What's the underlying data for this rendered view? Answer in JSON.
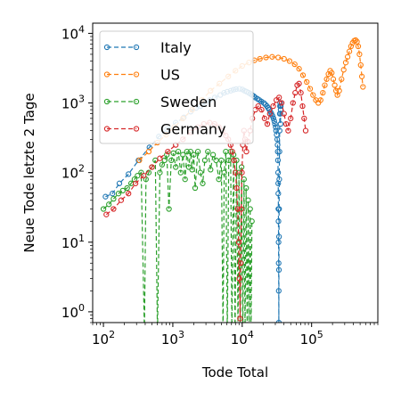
{
  "chart_data": {
    "type": "line",
    "xlabel": "Tode Total",
    "ylabel": "Neue Tode letzte 2 Tage",
    "x_scale": "log",
    "y_scale": "log",
    "xlim": [
      70,
      900000
    ],
    "ylim": [
      0.7,
      14000
    ],
    "x_ticks": [
      {
        "value": 100,
        "base": "10",
        "exp": "2"
      },
      {
        "value": 1000,
        "base": "10",
        "exp": "3"
      },
      {
        "value": 10000,
        "base": "10",
        "exp": "4"
      },
      {
        "value": 100000,
        "base": "10",
        "exp": "5"
      }
    ],
    "y_ticks": [
      {
        "value": 1,
        "base": "10",
        "exp": "0"
      },
      {
        "value": 10,
        "base": "10",
        "exp": "1"
      },
      {
        "value": 100,
        "base": "10",
        "exp": "2"
      },
      {
        "value": 1000,
        "base": "10",
        "exp": "3"
      },
      {
        "value": 10000,
        "base": "10",
        "exp": "4"
      }
    ],
    "legend_position": "top-left",
    "marker": "open-circle",
    "linestyle": "dashed",
    "series": [
      {
        "name": "Italy",
        "color": "#1f77b4",
        "points": [
          [
            107,
            45
          ],
          [
            135,
            50
          ],
          [
            170,
            70
          ],
          [
            230,
            95
          ],
          [
            320,
            150
          ],
          [
            460,
            230
          ],
          [
            630,
            330
          ],
          [
            830,
            420
          ],
          [
            1100,
            520
          ],
          [
            1440,
            620
          ],
          [
            1810,
            750
          ],
          [
            2160,
            850
          ],
          [
            2500,
            900
          ],
          [
            2980,
            1000
          ],
          [
            3410,
            1100
          ],
          [
            4030,
            1200
          ],
          [
            4830,
            1300
          ],
          [
            5480,
            1400
          ],
          [
            6080,
            1450
          ],
          [
            6820,
            1500
          ],
          [
            7500,
            1550
          ],
          [
            8160,
            1580
          ],
          [
            9130,
            1600
          ],
          [
            10020,
            1560
          ],
          [
            10780,
            1500
          ],
          [
            11590,
            1450
          ],
          [
            12430,
            1400
          ],
          [
            13150,
            1350
          ],
          [
            13910,
            1300
          ],
          [
            14680,
            1250
          ],
          [
            15360,
            1200
          ],
          [
            16520,
            1150
          ],
          [
            17670,
            1100
          ],
          [
            18850,
            1050
          ],
          [
            20460,
            1000
          ],
          [
            21650,
            950
          ],
          [
            22740,
            900
          ],
          [
            23660,
            850
          ],
          [
            24660,
            800
          ],
          [
            25550,
            750
          ],
          [
            26380,
            700
          ],
          [
            27360,
            650
          ],
          [
            28240,
            600
          ],
          [
            29000,
            550
          ],
          [
            29690,
            500
          ],
          [
            30370,
            450
          ],
          [
            30750,
            400
          ],
          [
            31370,
            350
          ],
          [
            31920,
            300
          ],
          [
            32340,
            250
          ],
          [
            32500,
            200
          ],
          [
            32700,
            150
          ],
          [
            32900,
            100
          ],
          [
            33000,
            70
          ],
          [
            33100,
            50
          ],
          [
            33200,
            30
          ],
          [
            33300,
            20
          ],
          [
            33400,
            10
          ],
          [
            33500,
            5
          ],
          [
            33600,
            2
          ],
          [
            33700,
            0.7
          ],
          [
            33800,
            4
          ],
          [
            33900,
            12
          ],
          [
            34000,
            30
          ],
          [
            34200,
            80
          ],
          [
            34400,
            200
          ],
          [
            34600,
            400
          ],
          [
            34800,
            700
          ],
          [
            35000,
            900
          ],
          [
            35200,
            1000
          ],
          [
            35400,
            700
          ],
          [
            35600,
            500
          ],
          [
            35800,
            800
          ],
          [
            36000,
            900
          ]
        ]
      },
      {
        "name": "US",
        "color": "#ff7f0e",
        "points": [
          [
            330,
            150
          ],
          [
            450,
            200
          ],
          [
            600,
            270
          ],
          [
            800,
            350
          ],
          [
            1050,
            450
          ],
          [
            1400,
            600
          ],
          [
            1900,
            800
          ],
          [
            2600,
            1100
          ],
          [
            3500,
            1500
          ],
          [
            4700,
            1900
          ],
          [
            6300,
            2400
          ],
          [
            8000,
            2900
          ],
          [
            10000,
            3400
          ],
          [
            12500,
            3800
          ],
          [
            15000,
            4100
          ],
          [
            18000,
            4300
          ],
          [
            22000,
            4500
          ],
          [
            27000,
            4600
          ],
          [
            33000,
            4500
          ],
          [
            40000,
            4300
          ],
          [
            48000,
            4000
          ],
          [
            57000,
            3600
          ],
          [
            66000,
            3100
          ],
          [
            75000,
            2500
          ],
          [
            85000,
            2000
          ],
          [
            95000,
            1600
          ],
          [
            105000,
            1300
          ],
          [
            115000,
            1100
          ],
          [
            125000,
            1000
          ],
          [
            135000,
            1100
          ],
          [
            145000,
            1400
          ],
          [
            155000,
            1800
          ],
          [
            165000,
            2200
          ],
          [
            175000,
            2600
          ],
          [
            185000,
            2900
          ],
          [
            195000,
            2700
          ],
          [
            205000,
            2200
          ],
          [
            215000,
            1800
          ],
          [
            225000,
            1500
          ],
          [
            235000,
            1300
          ],
          [
            250000,
            1500
          ],
          [
            270000,
            2200
          ],
          [
            290000,
            3000
          ],
          [
            310000,
            3800
          ],
          [
            330000,
            4600
          ],
          [
            350000,
            5500
          ],
          [
            370000,
            6500
          ],
          [
            390000,
            7300
          ],
          [
            410000,
            7800
          ],
          [
            430000,
            8000
          ],
          [
            450000,
            7600
          ],
          [
            470000,
            6500
          ],
          [
            490000,
            5000
          ],
          [
            510000,
            3500
          ],
          [
            530000,
            2400
          ],
          [
            550000,
            1700
          ]
        ]
      },
      {
        "name": "Sweden",
        "color": "#2ca02c",
        "points": [
          [
            100,
            30
          ],
          [
            120,
            35
          ],
          [
            140,
            42
          ],
          [
            165,
            50
          ],
          [
            190,
            55
          ],
          [
            220,
            60
          ],
          [
            250,
            70
          ],
          [
            280,
            80
          ],
          [
            310,
            90
          ],
          [
            350,
            100
          ],
          [
            390,
            0.5
          ],
          [
            410,
            80
          ],
          [
            450,
            100
          ],
          [
            500,
            120
          ],
          [
            560,
            150
          ],
          [
            600,
            0.5
          ],
          [
            650,
            100
          ],
          [
            700,
            130
          ],
          [
            760,
            150
          ],
          [
            820,
            180
          ],
          [
            880,
            30
          ],
          [
            950,
            150
          ],
          [
            1020,
            190
          ],
          [
            1100,
            120
          ],
          [
            1200,
            200
          ],
          [
            1300,
            100
          ],
          [
            1400,
            180
          ],
          [
            1500,
            80
          ],
          [
            1600,
            200
          ],
          [
            1700,
            120
          ],
          [
            1800,
            200
          ],
          [
            1900,
            110
          ],
          [
            2000,
            180
          ],
          [
            2100,
            60
          ],
          [
            2300,
            200
          ],
          [
            2500,
            100
          ],
          [
            2700,
            70
          ],
          [
            2900,
            150
          ],
          [
            3200,
            200
          ],
          [
            3500,
            110
          ],
          [
            3800,
            180
          ],
          [
            4200,
            150
          ],
          [
            4600,
            80
          ],
          [
            5000,
            150
          ],
          [
            5300,
            0.5
          ],
          [
            5500,
            100
          ],
          [
            5800,
            200
          ],
          [
            6100,
            0.5
          ],
          [
            6400,
            150
          ],
          [
            6800,
            200
          ],
          [
            7100,
            0.5
          ],
          [
            7500,
            180
          ],
          [
            7900,
            0.5
          ],
          [
            8300,
            150
          ],
          [
            8700,
            0.5
          ],
          [
            9000,
            100
          ],
          [
            9400,
            0.5
          ],
          [
            9800,
            120
          ],
          [
            10200,
            0.5
          ],
          [
            10600,
            80
          ],
          [
            11000,
            0.5
          ],
          [
            11400,
            60
          ],
          [
            11800,
            0.5
          ],
          [
            12200,
            40
          ],
          [
            12600,
            0.5
          ],
          [
            13000,
            30
          ],
          [
            13400,
            0.5
          ],
          [
            13800,
            20
          ]
        ]
      },
      {
        "name": "Germany",
        "color": "#d62728",
        "points": [
          [
            110,
            25
          ],
          [
            140,
            30
          ],
          [
            180,
            40
          ],
          [
            230,
            50
          ],
          [
            290,
            70
          ],
          [
            380,
            90
          ],
          [
            500,
            120
          ],
          [
            650,
            160
          ],
          [
            850,
            200
          ],
          [
            1100,
            250
          ],
          [
            1400,
            300
          ],
          [
            1800,
            380
          ],
          [
            2300,
            450
          ],
          [
            2800,
            500
          ],
          [
            3400,
            520
          ],
          [
            4000,
            500
          ],
          [
            4600,
            450
          ],
          [
            5200,
            400
          ],
          [
            5800,
            340
          ],
          [
            6300,
            300
          ],
          [
            6800,
            250
          ],
          [
            7200,
            200
          ],
          [
            7600,
            150
          ],
          [
            8000,
            100
          ],
          [
            8300,
            60
          ],
          [
            8600,
            30
          ],
          [
            8900,
            10
          ],
          [
            9100,
            3
          ],
          [
            9300,
            0.8
          ],
          [
            9500,
            5
          ],
          [
            9700,
            30
          ],
          [
            9900,
            100
          ],
          [
            10200,
            250
          ],
          [
            10600,
            400
          ],
          [
            11000,
            300
          ],
          [
            11500,
            200
          ],
          [
            12000,
            280
          ],
          [
            13000,
            400
          ],
          [
            14000,
            600
          ],
          [
            15500,
            800
          ],
          [
            17000,
            900
          ],
          [
            19000,
            800
          ],
          [
            21000,
            600
          ],
          [
            23000,
            500
          ],
          [
            25000,
            700
          ],
          [
            28000,
            900
          ],
          [
            31000,
            1100
          ],
          [
            34000,
            1200
          ],
          [
            37000,
            1000
          ],
          [
            40000,
            700
          ],
          [
            43000,
            500
          ],
          [
            46000,
            400
          ],
          [
            50000,
            600
          ],
          [
            54000,
            1000
          ],
          [
            58000,
            1400
          ],
          [
            62000,
            1800
          ],
          [
            66000,
            1900
          ],
          [
            70000,
            1400
          ],
          [
            74000,
            900
          ],
          [
            78000,
            600
          ],
          [
            82000,
            400
          ]
        ]
      }
    ]
  }
}
